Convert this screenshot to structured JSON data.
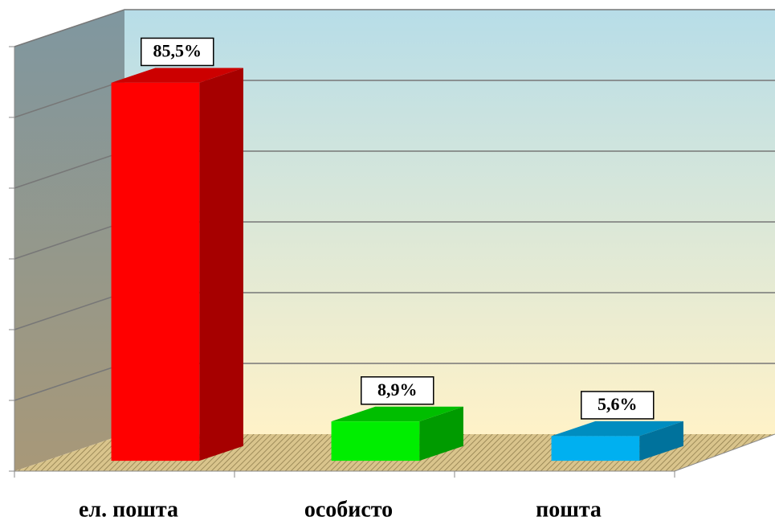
{
  "chart_data": {
    "type": "bar3d",
    "categories": [
      "ел. пошта",
      "особисто",
      "пошта"
    ],
    "values": [
      85.5,
      8.9,
      5.6
    ],
    "value_labels": [
      "85,5%",
      "8,9%",
      "5,6%"
    ],
    "colors": [
      "#ff0000",
      "#00ee00",
      "#00b0f0"
    ],
    "ylim": [
      0,
      96
    ],
    "yticks": [
      0,
      16,
      32,
      48,
      64,
      80,
      96
    ],
    "grid": true
  }
}
